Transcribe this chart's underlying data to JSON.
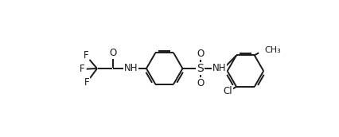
{
  "bg_color": "#ffffff",
  "line_color": "#1a1a1a",
  "line_width": 1.4,
  "font_size": 8.5,
  "figsize": [
    4.26,
    1.72
  ],
  "dpi": 100,
  "xlim": [
    -0.5,
    10.5
  ],
  "ylim": [
    -2.2,
    3.2
  ]
}
